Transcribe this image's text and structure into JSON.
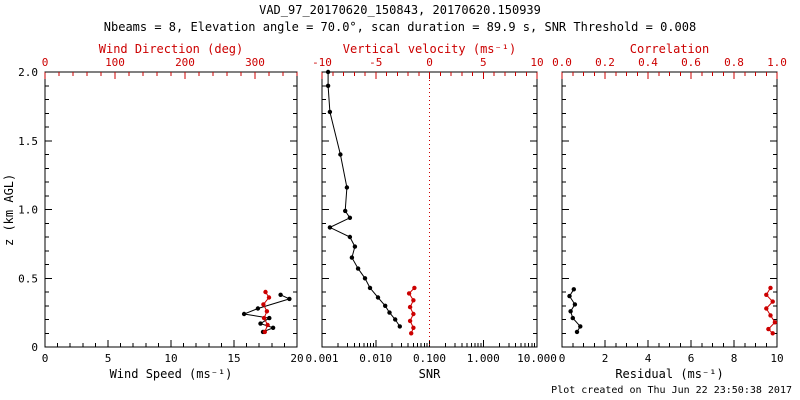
{
  "header": {
    "title": "VAD_97_20170620_150843, 20170620.150939",
    "subtitle": "Nbeams = 8, Elevation angle = 70.0°, scan duration = 89.9 s, SNR Threshold = 0.008"
  },
  "footer": {
    "created": "Plot created on Thu Jun 22 23:50:38 2017"
  },
  "colors": {
    "accent": "#cc0000",
    "black": "#000000",
    "background": "#ffffff"
  },
  "y_axis": {
    "label": "z (km AGL)",
    "lim": [
      0,
      2
    ],
    "ticks": [
      0,
      0.5,
      1.0,
      1.5,
      2.0
    ],
    "tick_labels": [
      "0",
      "0.5",
      "1.0",
      "1.5",
      "2.0"
    ],
    "minor_per_major": 5
  },
  "chart_data": [
    {
      "type": "line",
      "panel": "wind-speed-direction",
      "bottom_axis": {
        "label": "Wind Speed (ms⁻¹)",
        "scale": "linear",
        "lim": [
          0,
          20
        ],
        "ticks": [
          0,
          5,
          10,
          15,
          20
        ],
        "tick_labels": [
          "0",
          "5",
          "10",
          "15",
          "20"
        ],
        "minor_per_major": 5
      },
      "top_axis": {
        "label": "Wind Direction (deg)",
        "scale": "linear",
        "lim": [
          0,
          360
        ],
        "ticks": [
          0,
          100,
          200,
          300
        ],
        "tick_labels": [
          "0",
          "100",
          "200",
          "300"
        ],
        "minor_per_major": 5
      },
      "series": [
        {
          "name": "wind-speed",
          "axis": "bottom",
          "color": "#000000",
          "points": [
            [
              18.7,
              0.38
            ],
            [
              19.4,
              0.35
            ],
            [
              16.9,
              0.28
            ],
            [
              15.8,
              0.24
            ],
            [
              17.8,
              0.21
            ],
            [
              17.1,
              0.17
            ],
            [
              18.1,
              0.14
            ],
            [
              17.3,
              0.11
            ]
          ]
        },
        {
          "name": "wind-direction",
          "axis": "top",
          "color": "#cc0000",
          "points": [
            [
              315,
              0.4
            ],
            [
              320,
              0.36
            ],
            [
              312,
              0.31
            ],
            [
              317,
              0.26
            ],
            [
              313,
              0.21
            ],
            [
              318,
              0.16
            ],
            [
              314,
              0.11
            ]
          ]
        }
      ]
    },
    {
      "type": "line",
      "panel": "snr-vertical-velocity",
      "bottom_axis": {
        "label": "SNR",
        "scale": "log",
        "lim": [
          0.001,
          10
        ],
        "ticks": [
          0.001,
          0.01,
          0.1,
          1,
          10
        ],
        "tick_labels": [
          "0.001",
          "0.010",
          "0.100",
          "1.000",
          "10.000"
        ]
      },
      "top_axis": {
        "label": "Vertical velocity (ms⁻¹)",
        "scale": "linear",
        "lim": [
          -10,
          10
        ],
        "ticks": [
          -10,
          -5,
          0,
          5,
          10
        ],
        "tick_labels": [
          "-10",
          "-5",
          "0",
          "5",
          "10"
        ],
        "minor_per_major": 5
      },
      "ref_line": {
        "axis": "top",
        "value": 0,
        "color": "#cc0000",
        "style": "dotted"
      },
      "series": [
        {
          "name": "snr",
          "axis": "bottom",
          "color": "#000000",
          "points": [
            [
              0.0013,
              2.0
            ],
            [
              0.0013,
              1.9
            ],
            [
              0.0014,
              1.71
            ],
            [
              0.0022,
              1.4
            ],
            [
              0.0029,
              1.16
            ],
            [
              0.0027,
              0.99
            ],
            [
              0.0033,
              0.94
            ],
            [
              0.0014,
              0.87
            ],
            [
              0.0033,
              0.8
            ],
            [
              0.0041,
              0.73
            ],
            [
              0.0036,
              0.65
            ],
            [
              0.0047,
              0.57
            ],
            [
              0.0063,
              0.5
            ],
            [
              0.0078,
              0.43
            ],
            [
              0.011,
              0.36
            ],
            [
              0.015,
              0.3
            ],
            [
              0.018,
              0.25
            ],
            [
              0.023,
              0.2
            ],
            [
              0.028,
              0.15
            ]
          ]
        },
        {
          "name": "vertical-velocity",
          "axis": "top",
          "color": "#cc0000",
          "points": [
            [
              -1.4,
              0.43
            ],
            [
              -1.9,
              0.39
            ],
            [
              -1.5,
              0.34
            ],
            [
              -1.8,
              0.29
            ],
            [
              -1.5,
              0.24
            ],
            [
              -1.8,
              0.19
            ],
            [
              -1.5,
              0.14
            ],
            [
              -1.7,
              0.1
            ]
          ]
        }
      ]
    },
    {
      "type": "line",
      "panel": "residual-correlation",
      "bottom_axis": {
        "label": "Residual (ms⁻¹)",
        "scale": "linear",
        "lim": [
          0,
          10
        ],
        "ticks": [
          0,
          2,
          4,
          6,
          8,
          10
        ],
        "tick_labels": [
          "0",
          "2",
          "4",
          "6",
          "8",
          "10"
        ],
        "minor_per_major": 4
      },
      "top_axis": {
        "label": "Correlation",
        "scale": "linear",
        "lim": [
          0,
          1
        ],
        "ticks": [
          0,
          0.2,
          0.4,
          0.6,
          0.8,
          1.0
        ],
        "tick_labels": [
          "0.0",
          "0.2",
          "0.4",
          "0.6",
          "0.8",
          "1.0"
        ],
        "minor_per_major": 4
      },
      "series": [
        {
          "name": "residual",
          "axis": "bottom",
          "color": "#000000",
          "points": [
            [
              0.55,
              0.42
            ],
            [
              0.35,
              0.37
            ],
            [
              0.6,
              0.31
            ],
            [
              0.4,
              0.26
            ],
            [
              0.5,
              0.21
            ],
            [
              0.85,
              0.15
            ],
            [
              0.7,
              0.11
            ]
          ]
        },
        {
          "name": "correlation",
          "axis": "top",
          "color": "#cc0000",
          "points": [
            [
              0.97,
              0.43
            ],
            [
              0.95,
              0.38
            ],
            [
              0.98,
              0.33
            ],
            [
              0.95,
              0.28
            ],
            [
              0.97,
              0.23
            ],
            [
              0.99,
              0.18
            ],
            [
              0.96,
              0.13
            ],
            [
              0.98,
              0.1
            ]
          ]
        }
      ]
    }
  ]
}
